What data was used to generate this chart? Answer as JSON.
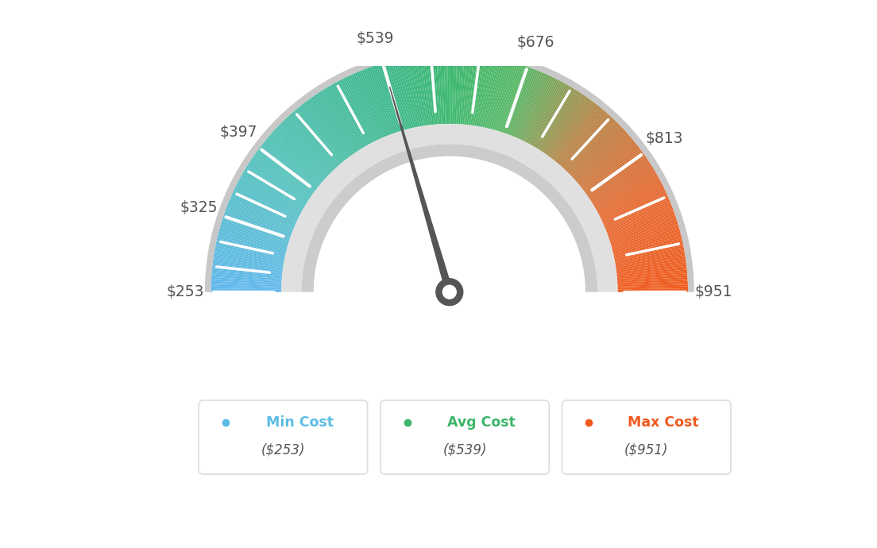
{
  "min_val": 253,
  "max_val": 951,
  "avg_val": 539,
  "tick_labels": [
    "$253",
    "$325",
    "$397",
    "$539",
    "$676",
    "$813",
    "$951"
  ],
  "tick_values": [
    253,
    325,
    397,
    539,
    676,
    813,
    951
  ],
  "legend": [
    {
      "label": "Min Cost",
      "value": "($253)",
      "color": "#5bbde4"
    },
    {
      "label": "Avg Cost",
      "value": "($539)",
      "color": "#3db56b"
    },
    {
      "label": "Max Cost",
      "value": "($951)",
      "color": "#f05a1e"
    }
  ],
  "background_color": "#ffffff",
  "color_stops": [
    [
      0.0,
      [
        0.38,
        0.72,
        0.93
      ]
    ],
    [
      0.2,
      [
        0.33,
        0.76,
        0.73
      ]
    ],
    [
      0.4,
      [
        0.24,
        0.72,
        0.55
      ]
    ],
    [
      0.5,
      [
        0.24,
        0.72,
        0.44
      ]
    ],
    [
      0.6,
      [
        0.34,
        0.72,
        0.4
      ]
    ],
    [
      0.72,
      [
        0.72,
        0.52,
        0.28
      ]
    ],
    [
      0.85,
      [
        0.9,
        0.42,
        0.2
      ]
    ],
    [
      1.0,
      [
        0.94,
        0.36,
        0.12
      ]
    ]
  ]
}
